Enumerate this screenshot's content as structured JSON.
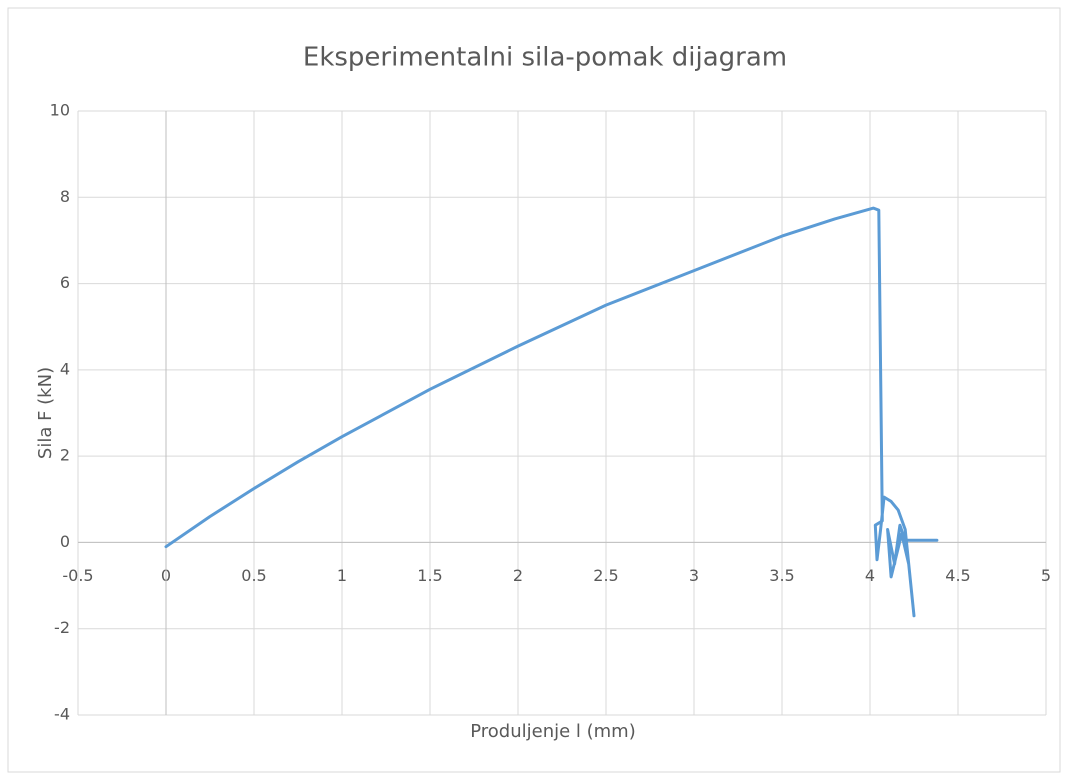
{
  "chart_data": {
    "type": "line",
    "title": "Eksperimentalni sila-pomak dijagram",
    "x_label": "Produljenje l (mm)",
    "y_label": "Sila F (kN)",
    "color": "#5b9bd5",
    "grid": true,
    "x": [
      0,
      0.25,
      0.5,
      0.75,
      1,
      1.5,
      2,
      2.5,
      3,
      3.5,
      3.8,
      4.02,
      4.05,
      4.06,
      4.07,
      4.03,
      4.04,
      4.06,
      4.08,
      4.12,
      4.16,
      4.2,
      4.25,
      4.22,
      4.18,
      4.12,
      4.1,
      4.14,
      4.17,
      4.2,
      4.38
    ],
    "values": [
      -0.1,
      0.6,
      1.25,
      1.87,
      2.45,
      3.55,
      4.55,
      5.5,
      6.3,
      7.1,
      7.5,
      7.75,
      7.7,
      4,
      0.5,
      0.4,
      -0.4,
      0.3,
      1.05,
      0.95,
      0.75,
      0.3,
      -1.7,
      -0.5,
      0.2,
      -0.8,
      0.3,
      -0.5,
      0.4,
      0.05,
      0.05
    ],
    "xlim": [
      -0.5,
      5
    ],
    "xticks": [
      -0.5,
      0,
      0.5,
      1,
      1.5,
      2,
      2.5,
      3,
      3.5,
      4,
      4.5,
      5
    ],
    "ylim": [
      -4,
      10
    ],
    "yticks": [
      -4,
      -2,
      0,
      2,
      4,
      6,
      8,
      10
    ]
  }
}
